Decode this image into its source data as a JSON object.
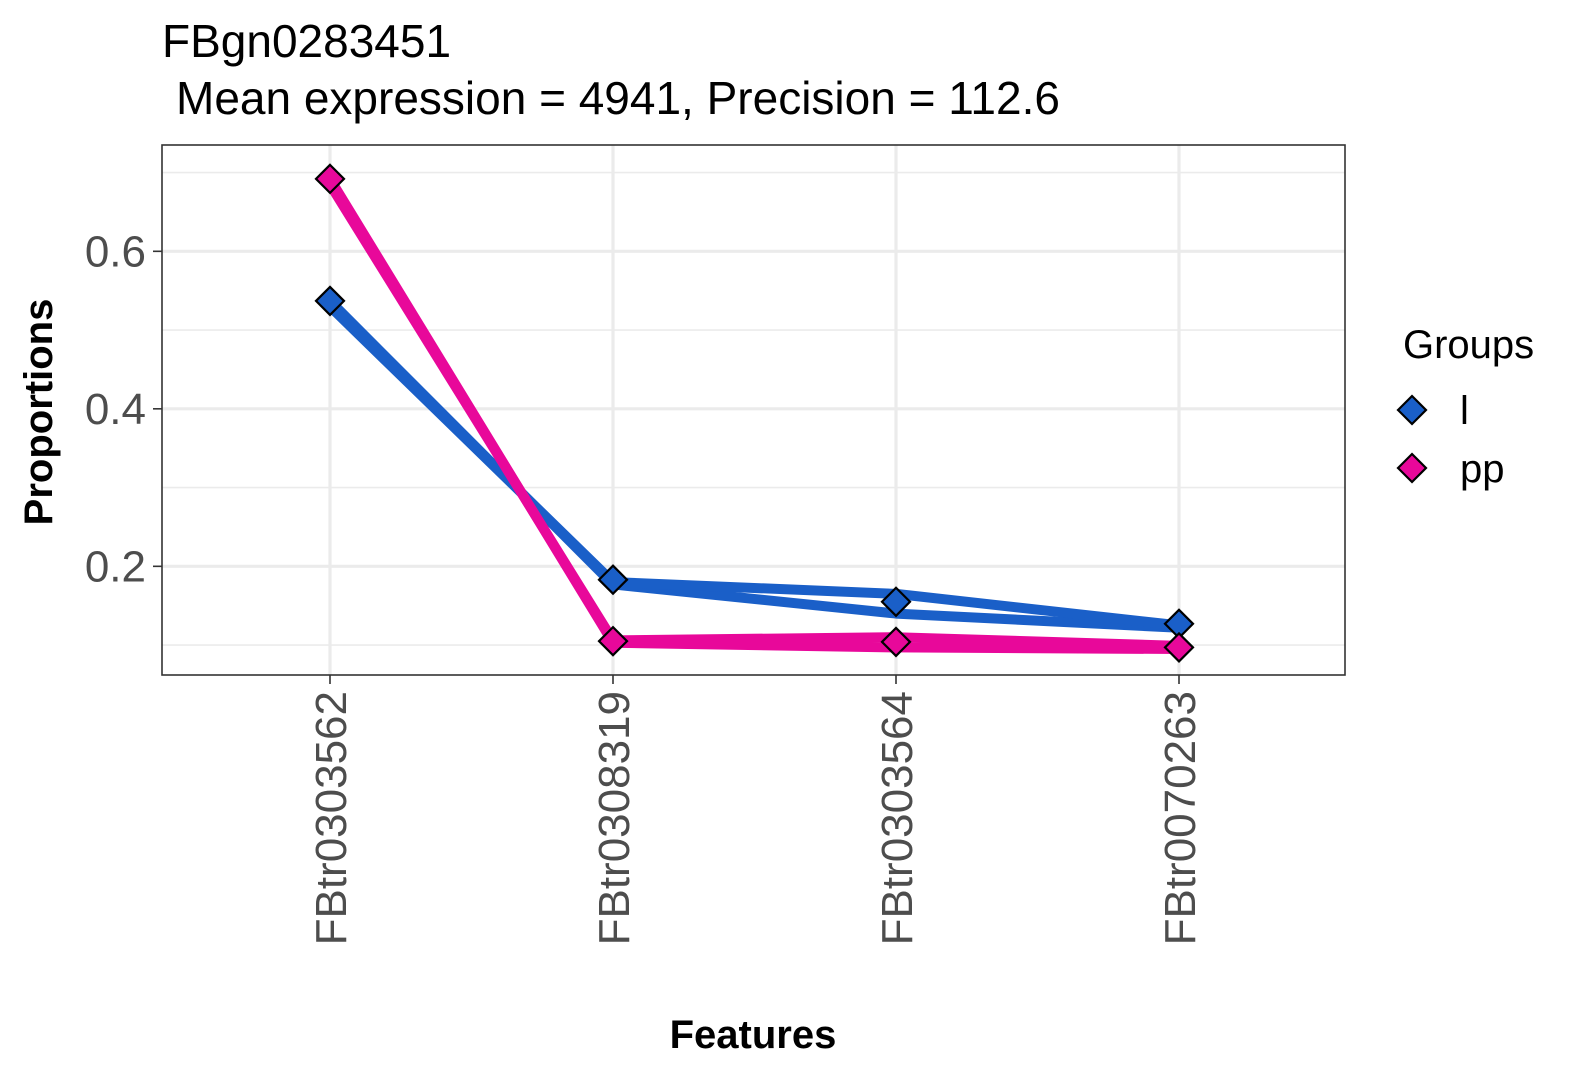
{
  "chart_data": {
    "type": "line",
    "title": "FBgn0283451",
    "subtitle": "Mean expression = 4941, Precision = 112.6",
    "xlabel": "Features",
    "ylabel": "Proportions",
    "categories": [
      "FBtr0303562",
      "FBtr0308319",
      "FBtr0303564",
      "FBtr0070263"
    ],
    "yticks": [
      0.2,
      0.4,
      0.6
    ],
    "yticklabels": [
      "0.2",
      "0.4",
      "0.6"
    ],
    "ylim": [
      0.062,
      0.735
    ],
    "grid": true,
    "legend": {
      "title": "Groups",
      "position": "right"
    },
    "series": [
      {
        "name": "l",
        "color": "#1a5fc8",
        "values": [
          0.537,
          0.183,
          0.155,
          0.127
        ],
        "replicates": [
          [
            0.537,
            0.177,
            0.14,
            0.122
          ],
          [
            0.53,
            0.18,
            0.165,
            0.125
          ]
        ]
      },
      {
        "name": "pp",
        "color": "#e8089a",
        "values": [
          0.692,
          0.105,
          0.104,
          0.097
        ],
        "replicates": [
          [
            0.692,
            0.103,
            0.097,
            0.095
          ],
          [
            0.685,
            0.106,
            0.11,
            0.099
          ]
        ]
      }
    ]
  }
}
